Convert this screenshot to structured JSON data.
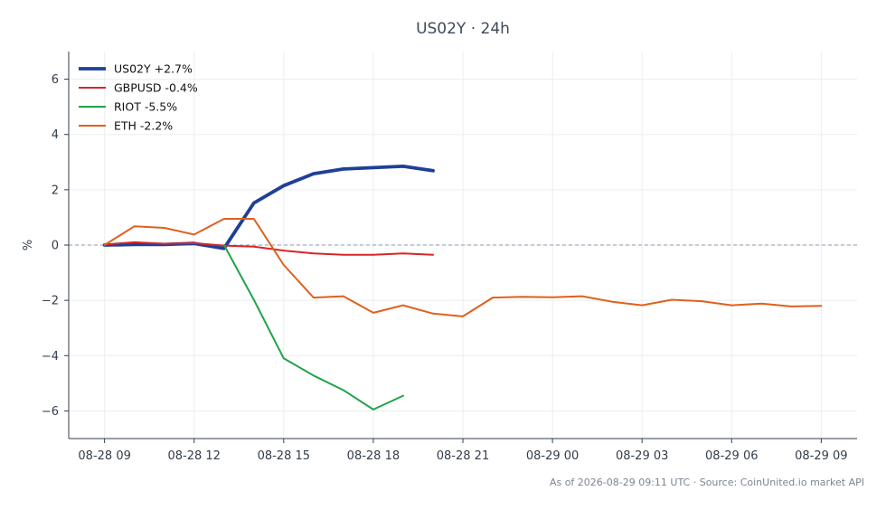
{
  "chart_data": {
    "type": "line",
    "title": "US02Y · 24h",
    "ylabel": "%",
    "xlabel": "",
    "ylim": [
      -7,
      7
    ],
    "yticks": [
      6,
      4,
      2,
      0,
      -2,
      -4,
      -6
    ],
    "ytick_labels": [
      "6",
      "4",
      "2",
      "0",
      "−2",
      "−4",
      "−6"
    ],
    "x_range_hours": [
      -1.2,
      25.2
    ],
    "xticks": [
      {
        "label": "08-28 09",
        "value": 0
      },
      {
        "label": "08-28 12",
        "value": 3
      },
      {
        "label": "08-28 15",
        "value": 6
      },
      {
        "label": "08-28 18",
        "value": 9
      },
      {
        "label": "08-28 21",
        "value": 12
      },
      {
        "label": "08-29 00",
        "value": 15
      },
      {
        "label": "08-29 03",
        "value": 18
      },
      {
        "label": "08-29 06",
        "value": 21
      },
      {
        "label": "08-29 09",
        "value": 24
      }
    ],
    "zero_line": true,
    "grid": true,
    "legend_position": "top-left",
    "footer": "As of 2026-08-29 09:11 UTC · Source: CoinUnited.io market API",
    "series": [
      {
        "name": "US02Y +2.7%",
        "color": "#1f3f99",
        "width": 3.8,
        "x": [
          0,
          1,
          2,
          3,
          4,
          5,
          6,
          7,
          8,
          9,
          10,
          11
        ],
        "y": [
          0.0,
          0.02,
          0.02,
          0.06,
          -0.12,
          1.52,
          2.15,
          2.58,
          2.75,
          2.8,
          2.85,
          2.69
        ]
      },
      {
        "name": "GBPUSD -0.4%",
        "color": "#d62728",
        "width": 2.0,
        "x": [
          0,
          1,
          2,
          3,
          4,
          5,
          6,
          7,
          8,
          9,
          10,
          11
        ],
        "y": [
          0.02,
          0.1,
          0.05,
          0.07,
          -0.02,
          -0.06,
          -0.2,
          -0.3,
          -0.35,
          -0.35,
          -0.3,
          -0.35
        ]
      },
      {
        "name": "RIOT -5.5%",
        "color": "#22a34a",
        "width": 2.0,
        "x": [
          4,
          5,
          6,
          7,
          8,
          9,
          10
        ],
        "y": [
          0.0,
          -1.98,
          -4.1,
          -4.72,
          -5.25,
          -5.95,
          -5.45
        ]
      },
      {
        "name": "ETH -2.2%",
        "color": "#e0601b",
        "width": 2.0,
        "x": [
          0,
          1,
          2,
          3,
          4,
          5,
          6,
          7,
          8,
          9,
          10,
          11,
          12,
          13,
          14,
          15,
          16,
          17,
          18,
          19,
          20,
          21,
          22,
          23,
          24
        ],
        "y": [
          0.0,
          0.68,
          0.62,
          0.38,
          0.95,
          0.95,
          -0.72,
          -1.9,
          -1.85,
          -2.45,
          -2.18,
          -2.48,
          -2.58,
          -1.9,
          -1.87,
          -1.89,
          -1.85,
          -2.05,
          -2.18,
          -1.98,
          -2.03,
          -2.18,
          -2.12,
          -2.22,
          -2.2
        ]
      }
    ]
  }
}
